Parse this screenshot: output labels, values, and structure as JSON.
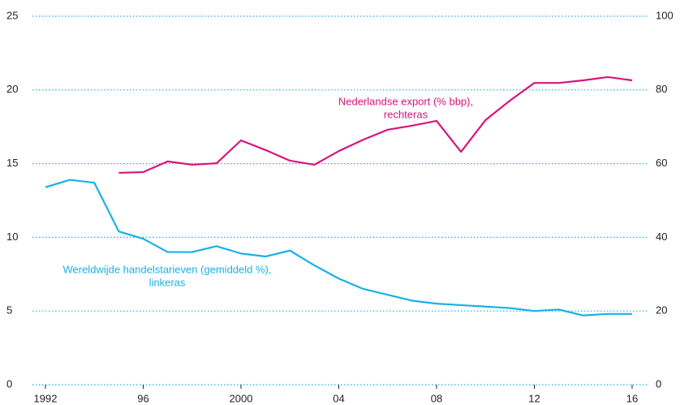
{
  "chart_data": {
    "type": "line",
    "x": [
      1992,
      1993,
      1994,
      1995,
      1996,
      1997,
      1998,
      1999,
      2000,
      2001,
      2002,
      2003,
      2004,
      2005,
      2006,
      2007,
      2008,
      2009,
      2010,
      2011,
      2012,
      2013,
      2014,
      2015,
      2016
    ],
    "series": [
      {
        "color": "#1ab0e8",
        "axis": "y",
        "values": [
          13.4,
          13.9,
          13.7,
          10.4,
          9.9,
          9.0,
          9.0,
          9.4,
          8.9,
          8.7,
          9.1,
          8.1,
          7.2,
          6.5,
          6.1,
          5.7,
          5.5,
          5.4,
          5.3,
          5.2,
          5.0,
          5.1,
          4.7,
          4.8,
          4.8
        ]
      },
      {
        "color": "#d6157a",
        "axis": "y2",
        "values": [
          null,
          null,
          null,
          57.5,
          57.7,
          60.6,
          59.7,
          60.1,
          66.3,
          63.7,
          60.8,
          59.7,
          63.4,
          66.5,
          69.2,
          70.3,
          71.6,
          63.2,
          71.8,
          77.1,
          81.9,
          81.9,
          82.6,
          83.5,
          82.6
        ]
      }
    ],
    "annotations": [
      {
        "lines": [
          "Wereldwijde handelstarieven (gemiddeld %),",
          "linkeras"
        ],
        "color": "#1ab0e8"
      },
      {
        "lines": [
          "Nederlandse export (% bbp),",
          "rechteras"
        ],
        "color": "#d6157a"
      }
    ],
    "xlim": [
      1992,
      2016
    ],
    "xticks": [
      1992,
      {
        "value": 1996,
        "label": "96"
      },
      2000,
      {
        "value": 2004,
        "label": "04"
      },
      {
        "value": 2008,
        "label": "08"
      },
      {
        "value": 2012,
        "label": "12"
      },
      {
        "value": 2016,
        "label": "16"
      }
    ],
    "ylim": [
      0,
      25
    ],
    "yticks": [
      0,
      5,
      10,
      15,
      20,
      25
    ],
    "y2lim": [
      0,
      100
    ],
    "y2ticks": [
      0,
      20,
      40,
      60,
      80,
      100
    ],
    "grid": true
  }
}
